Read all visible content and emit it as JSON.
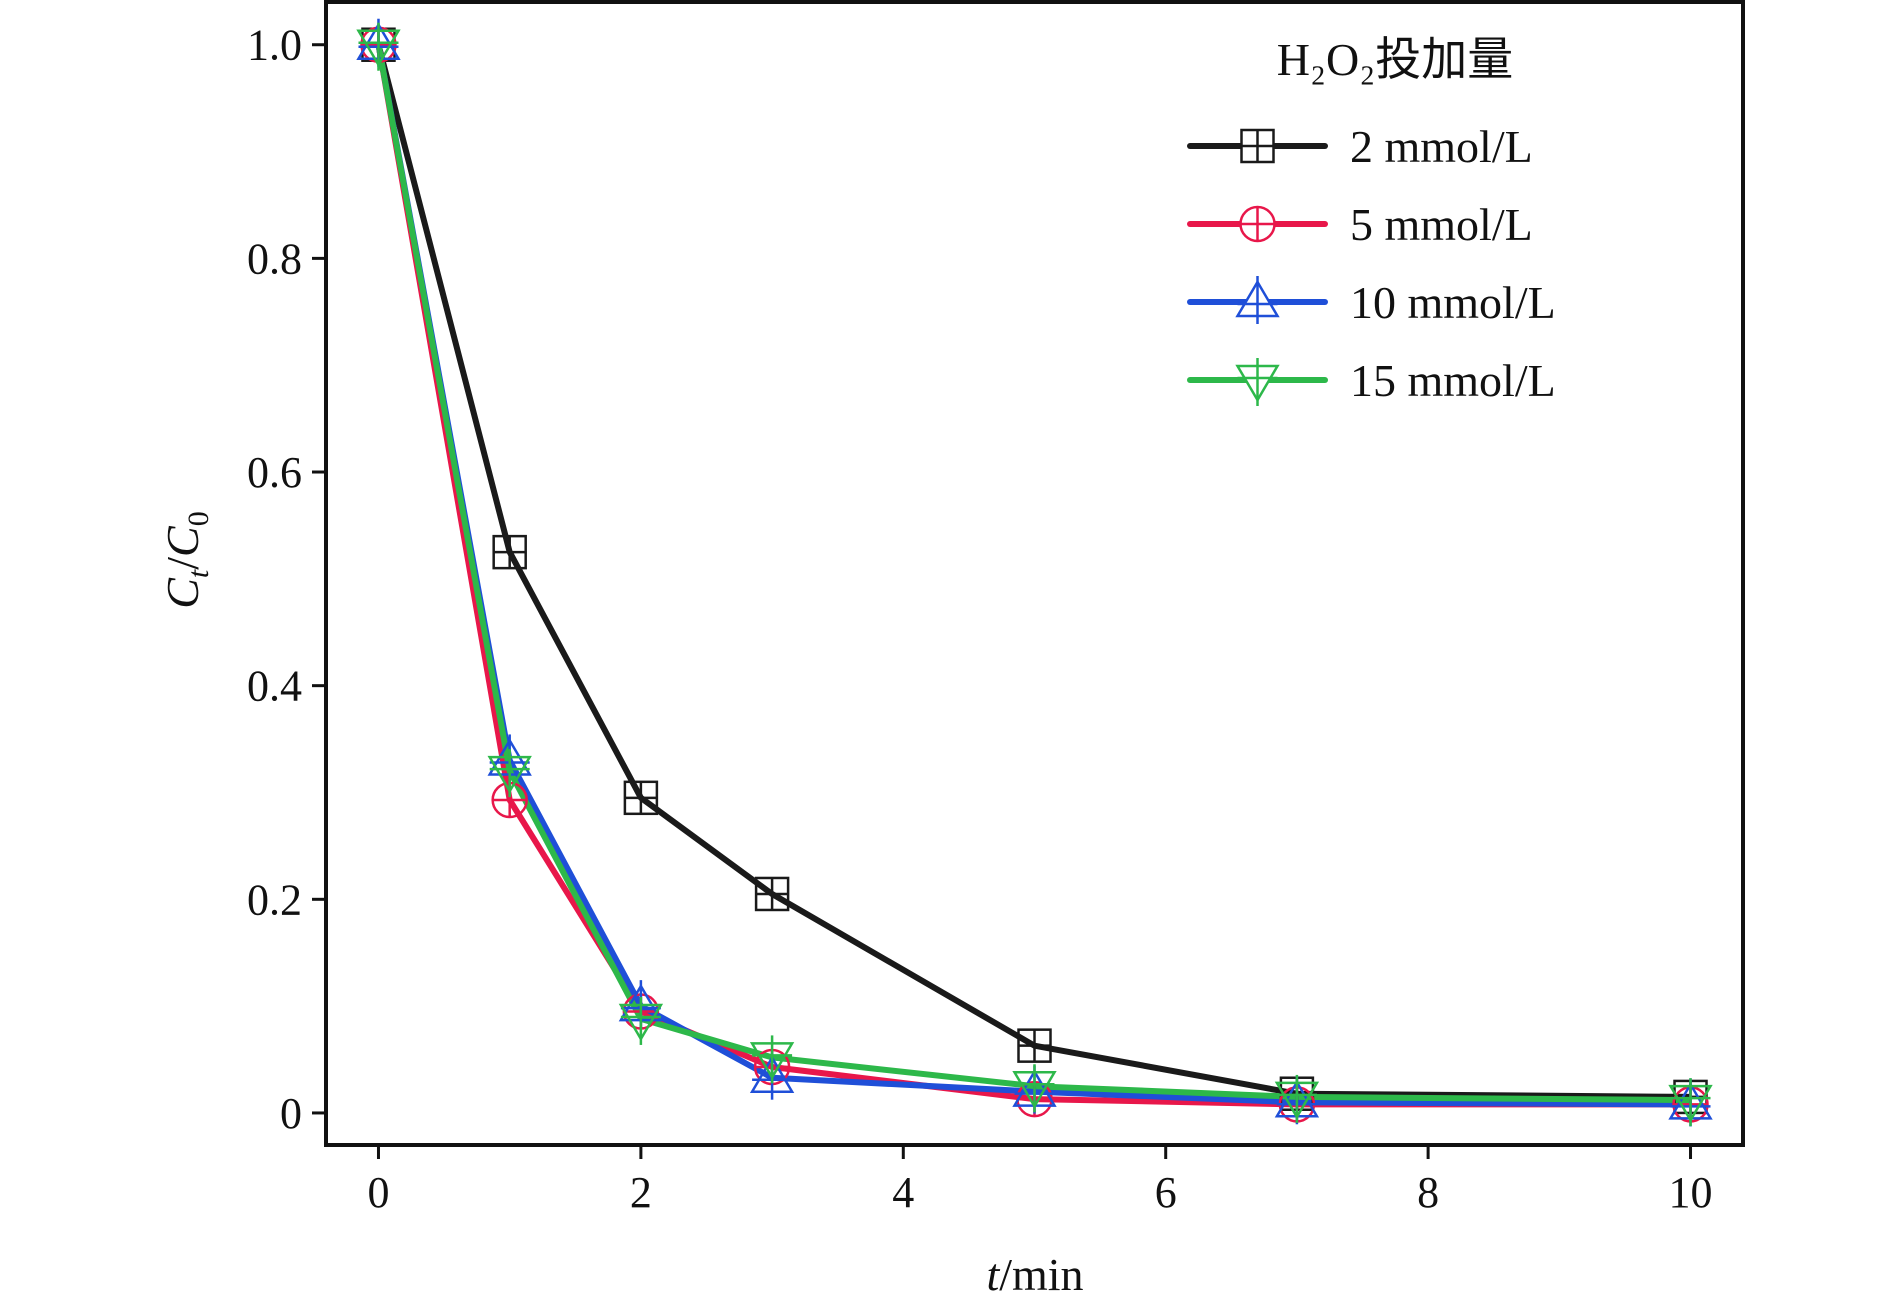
{
  "chart_data": {
    "type": "line",
    "title": "",
    "xlabel": {
      "var": "t",
      "unit": "/min"
    },
    "ylabel": {
      "num": "C",
      "num_sub": "t",
      "den": "C",
      "den_sub": "0"
    },
    "xlim": [
      -0.4,
      10.4
    ],
    "ylim": [
      -0.03,
      1.04
    ],
    "xticks": [
      {
        "value": 0,
        "label": "0"
      },
      {
        "value": 2,
        "label": "2"
      },
      {
        "value": 4,
        "label": "4"
      },
      {
        "value": 6,
        "label": "6"
      },
      {
        "value": 8,
        "label": "8"
      },
      {
        "value": 10,
        "label": "10"
      }
    ],
    "yticks": [
      {
        "value": 0,
        "label": "0"
      },
      {
        "value": 0.2,
        "label": "0.2"
      },
      {
        "value": 0.4,
        "label": "0.4"
      },
      {
        "value": 0.6,
        "label": "0.6"
      },
      {
        "value": 0.8,
        "label": "0.8"
      },
      {
        "value": 1.0,
        "label": "1.0"
      }
    ],
    "x": [
      0,
      1,
      2,
      3,
      5,
      7,
      10
    ],
    "legend": {
      "title": "H₂O₂投加量",
      "position": "top-right"
    },
    "series": [
      {
        "name": "2 mmol/L",
        "color": "#1a1a1a",
        "marker": "square-cross",
        "values": [
          1.0,
          0.525,
          0.295,
          0.205,
          0.063,
          0.018,
          0.015
        ]
      },
      {
        "name": "5 mmol/L",
        "color": "#e8174a",
        "marker": "circle-cross",
        "values": [
          1.0,
          0.293,
          0.095,
          0.043,
          0.013,
          0.008,
          0.008
        ]
      },
      {
        "name": "10 mmol/L",
        "color": "#1f4fd8",
        "marker": "triangle-up",
        "values": [
          1.0,
          0.33,
          0.1,
          0.033,
          0.02,
          0.01,
          0.008
        ]
      },
      {
        "name": "15 mmol/L",
        "color": "#2db84a",
        "marker": "triangle-down",
        "values": [
          1.0,
          0.32,
          0.088,
          0.052,
          0.025,
          0.015,
          0.012
        ]
      }
    ]
  }
}
